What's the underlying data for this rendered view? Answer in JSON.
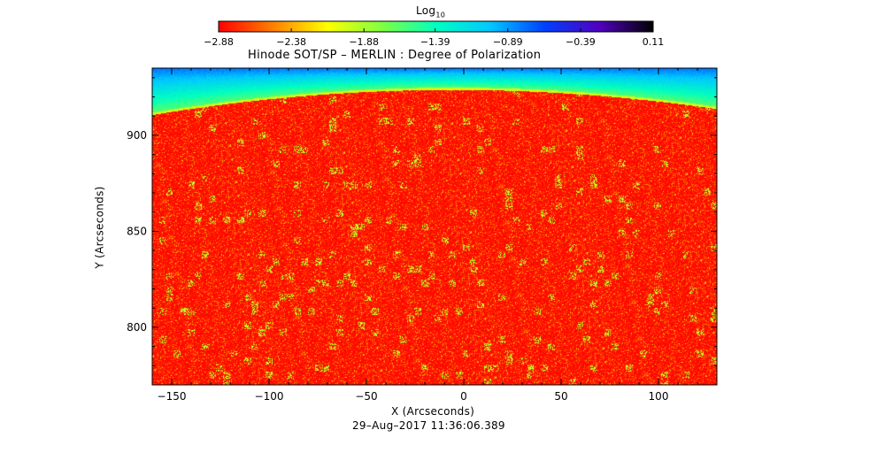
{
  "chart_data": {
    "type": "heatmap",
    "title": "Hinode SOT/SP – MERLIN : Degree of Polarization",
    "timestamp": "29–Aug–2017 11:36:06.389",
    "xlabel": "X (Arcseconds)",
    "ylabel": "Y (Arcseconds)",
    "xlim": [
      -160,
      130
    ],
    "ylim": [
      770,
      935
    ],
    "xticks": [
      -150,
      -100,
      -50,
      0,
      50,
      100
    ],
    "yticks": [
      800,
      850,
      900
    ],
    "xtick_labels": [
      "−150",
      "−100",
      "−50",
      "0",
      "50",
      "100"
    ],
    "ytick_labels": [
      "800",
      "850",
      "900"
    ],
    "colorbar": {
      "label_base": "Log",
      "label_sub": "10",
      "range": [
        -2.88,
        0.11
      ],
      "ticks": [
        -2.88,
        -2.38,
        -1.88,
        -1.39,
        -0.89,
        -0.39,
        0.11
      ],
      "tick_labels": [
        "−2.88",
        "−2.38",
        "−1.88",
        "−1.39",
        "−0.89",
        "−0.39",
        "0.11"
      ],
      "colormap": [
        "#ff0000",
        "#ff8000",
        "#ffff00",
        "#80ff40",
        "#00ffc0",
        "#00c8ff",
        "#0040ff",
        "#5000c0",
        "#000000"
      ]
    },
    "limb": {
      "y_at_x_min": 912,
      "y_at_center": 925,
      "y_at_x_max": 915
    }
  }
}
